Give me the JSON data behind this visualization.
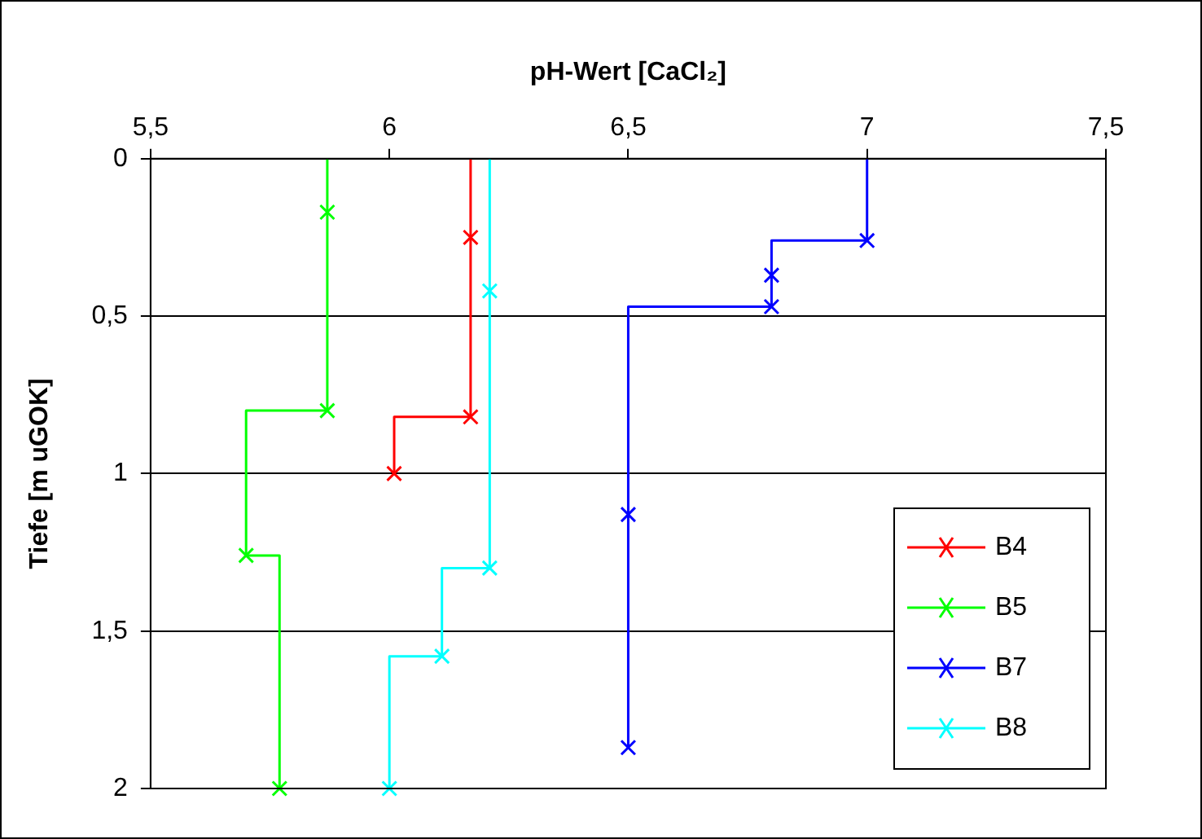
{
  "chart_data": {
    "type": "step",
    "xlabel": "pH-Wert [CaCl₂]",
    "ylabel": "Tiefe [m uGOK]",
    "xlim": [
      5.5,
      7.5
    ],
    "xticks": [
      {
        "value": 5.5,
        "label": "5,5"
      },
      6,
      {
        "value": 6.5,
        "label": "6,5"
      },
      7,
      {
        "value": 7.5,
        "label": "7,5"
      }
    ],
    "ylim": [
      2,
      0
    ],
    "yticks": [
      0,
      {
        "value": 0.5,
        "label": "0,5"
      },
      1,
      {
        "value": 1.5,
        "label": "1,5"
      },
      2
    ],
    "grid": "y",
    "legend": "bottom right",
    "marker": "cross",
    "line_style": "solid",
    "series": [
      {
        "name": "B4",
        "color": "#ff0000",
        "x": [
          6.17,
          6.17,
          6.17,
          6.01
        ],
        "values": [
          0,
          0.25,
          0.82,
          1.0
        ]
      },
      {
        "name": "B5",
        "color": "#00ff00",
        "x": [
          5.87,
          5.87,
          5.87,
          5.7,
          5.77
        ],
        "values": [
          0,
          0.17,
          0.8,
          1.26,
          2.0
        ]
      },
      {
        "name": "B7",
        "color": "#0000ff",
        "x": [
          7.0,
          7.0,
          6.8,
          6.8,
          6.5,
          6.5
        ],
        "values": [
          0,
          0.26,
          0.37,
          0.47,
          1.13,
          1.87
        ]
      },
      {
        "name": "B8",
        "color": "#00ffff",
        "x": [
          6.21,
          6.21,
          6.21,
          6.11,
          6.0
        ],
        "values": [
          0,
          0.42,
          1.3,
          1.58,
          2.0
        ]
      }
    ]
  }
}
